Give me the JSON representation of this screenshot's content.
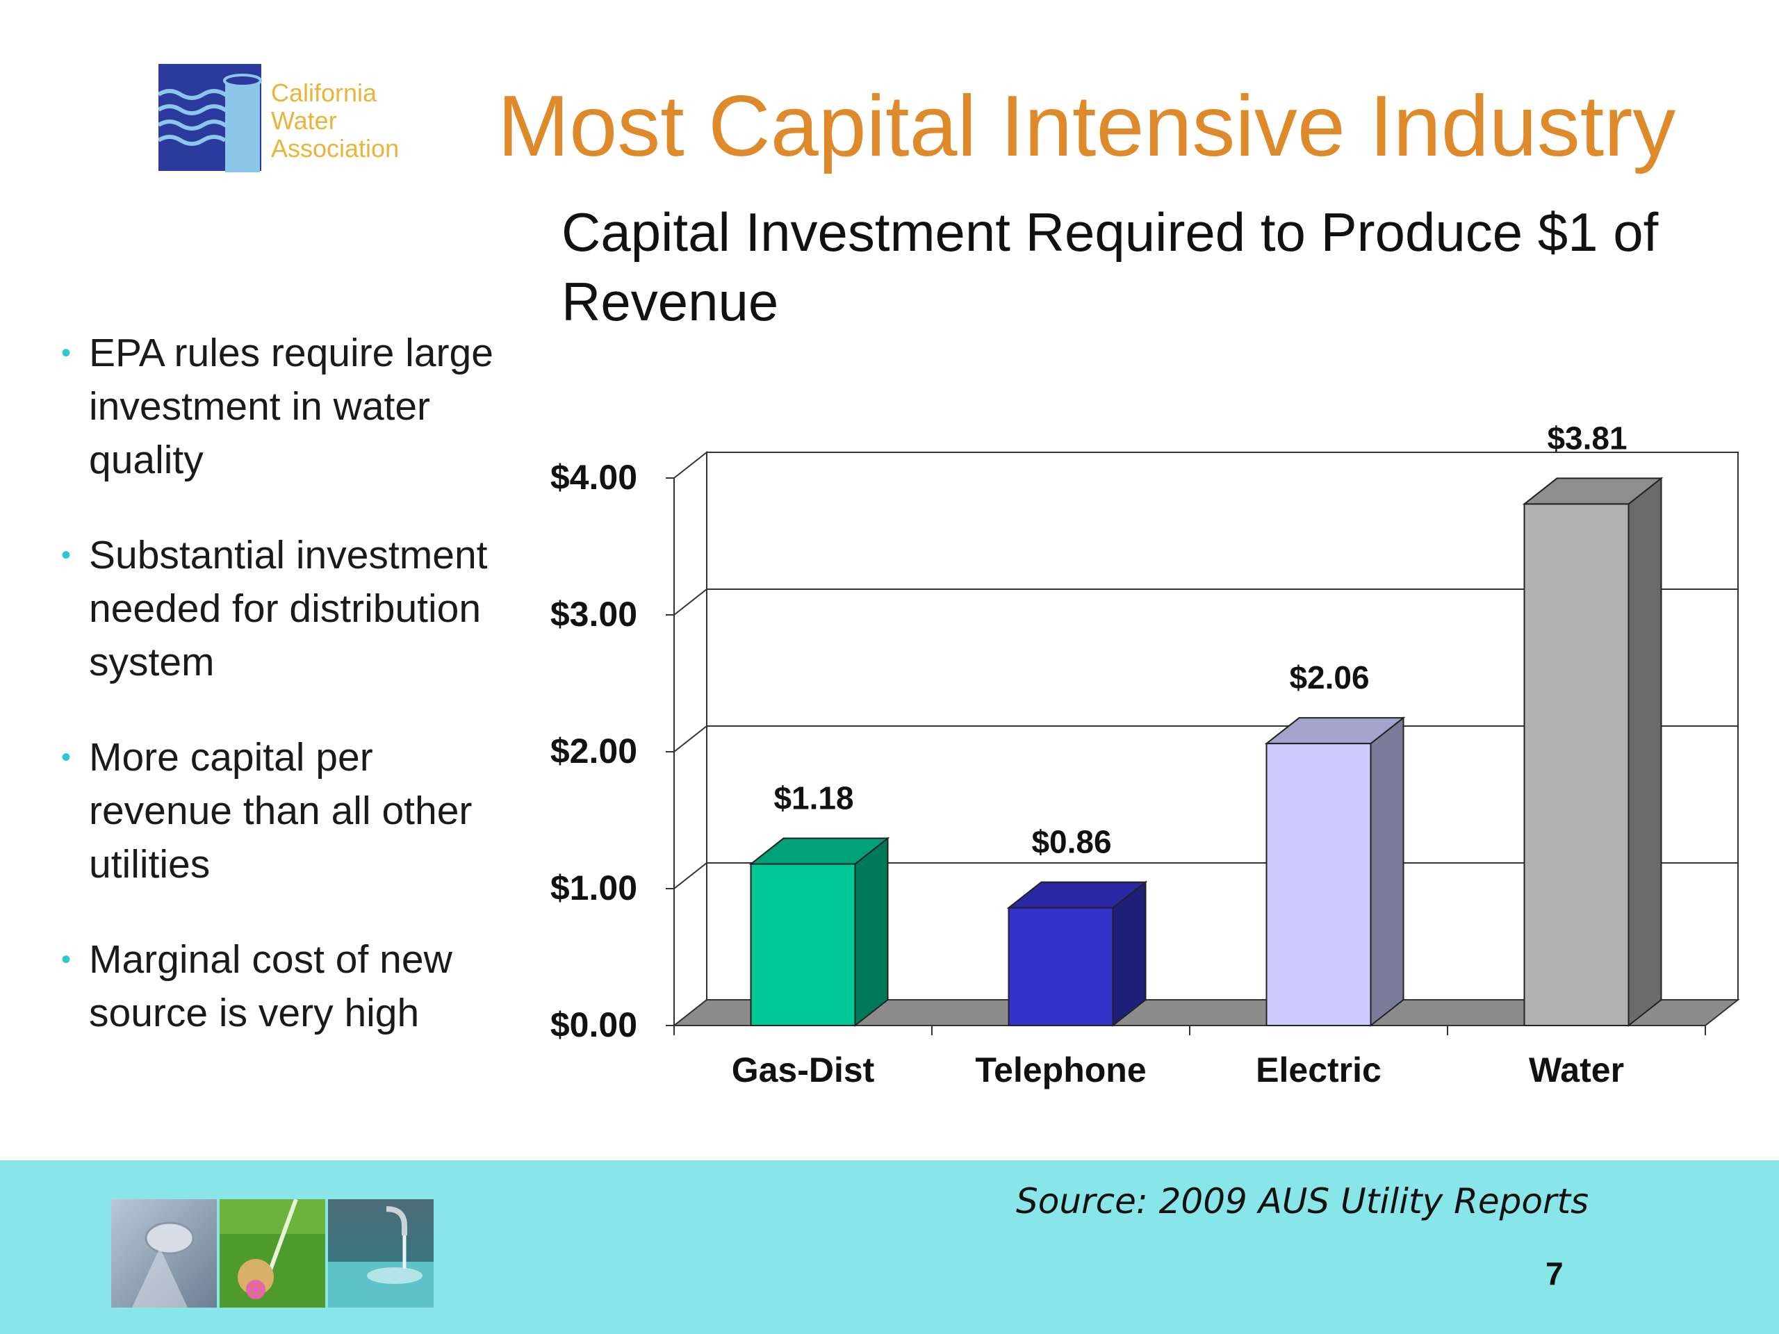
{
  "logo": {
    "lines": [
      "California",
      "Water",
      "Association"
    ]
  },
  "slide_title": "Most Capital Intensive Industry",
  "bullets": [
    " EPA rules require large investment in water quality",
    "Substantial investment needed for distribution system",
    "More capital per revenue than all other utilities",
    "Marginal cost of new source is very high"
  ],
  "chart_data": {
    "type": "bar",
    "title": "Capital Investment Required to Produce $1 of Revenue",
    "categories": [
      "Gas-Dist",
      "Telephone",
      "Electric",
      "Water"
    ],
    "values": [
      1.18,
      0.86,
      2.06,
      3.81
    ],
    "data_labels": [
      "$1.18",
      "$0.86",
      "$2.06",
      "$3.81"
    ],
    "ylim": [
      0,
      4
    ],
    "yticks": [
      0,
      1,
      2,
      3,
      4
    ],
    "ytick_labels": [
      "$0.00",
      "$1.00",
      "$2.00",
      "$3.00",
      "$4.00"
    ],
    "grid": true,
    "three_d": true,
    "colors": [
      "#00c896",
      "#3333cc",
      "#ccccff",
      "#b2b2b2"
    ]
  },
  "footer": {
    "source": "Source: 2009 AUS Utility Reports",
    "page_number": "7"
  }
}
